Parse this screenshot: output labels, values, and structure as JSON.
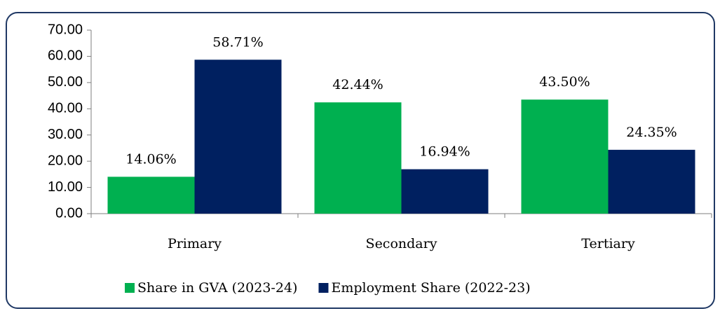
{
  "chart_data": {
    "type": "bar",
    "categories": [
      "Primary",
      "Secondary",
      "Tertiary"
    ],
    "series": [
      {
        "name": "Share in GVA (2023-24)",
        "color": "#00b050",
        "values": [
          14.06,
          42.44,
          43.5
        ],
        "value_labels": [
          "14.06%",
          "42.44%",
          "43.50%"
        ]
      },
      {
        "name": "Employment Share (2022-23)",
        "color": "#002060",
        "values": [
          58.71,
          16.94,
          24.35
        ],
        "value_labels": [
          "58.71%",
          "16.94%",
          "24.35%"
        ]
      }
    ],
    "ylim": [
      0,
      70
    ],
    "yticks": [
      {
        "value": 0,
        "label": "0.00"
      },
      {
        "value": 10,
        "label": "10.00"
      },
      {
        "value": 20,
        "label": "20.00"
      },
      {
        "value": 30,
        "label": "30.00"
      },
      {
        "value": 40,
        "label": "40.00"
      },
      {
        "value": 50,
        "label": "50.00"
      },
      {
        "value": 60,
        "label": "60.00"
      },
      {
        "value": 70,
        "label": "70.00"
      }
    ],
    "grid": false,
    "legend": "bottom"
  }
}
